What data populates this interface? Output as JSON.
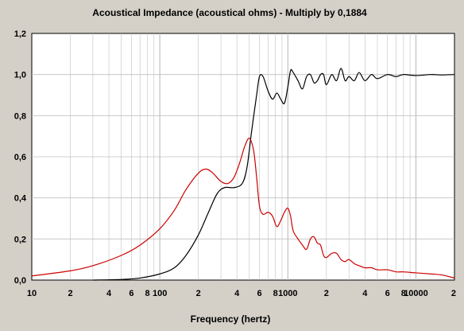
{
  "chart_data": {
    "type": "line",
    "title": "Acoustical Impedance (acoustical ohms) - Multiply by 0,1884",
    "xlabel": "Frequency (hertz)",
    "ylabel": "",
    "xscale": "log",
    "xlim": [
      10,
      20000
    ],
    "ylim": [
      0,
      1.2
    ],
    "grid": true,
    "legend": "none",
    "colors": {
      "background": "#d4d0c8",
      "plot_background": "#ffffff",
      "grid": "#c0c0c0",
      "resistance_curve": "#000000",
      "reactance_curve": "#cc0000"
    },
    "y_ticks": [
      {
        "value": 0.0,
        "label": "0,0"
      },
      {
        "value": 0.2,
        "label": "0,2"
      },
      {
        "value": 0.4,
        "label": "0,4"
      },
      {
        "value": 0.6,
        "label": "0,6"
      },
      {
        "value": 0.8,
        "label": "0,8"
      },
      {
        "value": 1.0,
        "label": "1,0"
      },
      {
        "value": 1.2,
        "label": "1,2"
      }
    ],
    "x_ticks": [
      {
        "value": 10,
        "label": "10"
      },
      {
        "value": 20,
        "label": "2"
      },
      {
        "value": 40,
        "label": "4"
      },
      {
        "value": 60,
        "label": "6"
      },
      {
        "value": 80,
        "label": "8"
      },
      {
        "value": 100,
        "label": "100"
      },
      {
        "value": 200,
        "label": "2"
      },
      {
        "value": 400,
        "label": "4"
      },
      {
        "value": 600,
        "label": "6"
      },
      {
        "value": 800,
        "label": "8"
      },
      {
        "value": 1000,
        "label": "1000"
      },
      {
        "value": 2000,
        "label": "2"
      },
      {
        "value": 4000,
        "label": "4"
      },
      {
        "value": 6000,
        "label": "6"
      },
      {
        "value": 8000,
        "label": "8"
      },
      {
        "value": 10000,
        "label": "10000"
      },
      {
        "value": 20000,
        "label": "2"
      }
    ],
    "series": [
      {
        "color": "#000000",
        "x": [
          30,
          50,
          70,
          100,
          130,
          160,
          200,
          240,
          280,
          320,
          380,
          440,
          480,
          520,
          570,
          600,
          640,
          700,
          760,
          820,
          880,
          940,
          1000,
          1050,
          1100,
          1200,
          1300,
          1400,
          1500,
          1600,
          1700,
          1800,
          1900,
          2000,
          2200,
          2400,
          2600,
          2800,
          3000,
          3300,
          3600,
          4000,
          4500,
          5000,
          6000,
          7000,
          8000,
          10000,
          13000,
          16000,
          20000
        ],
        "y": [
          0.0,
          0.003,
          0.01,
          0.03,
          0.06,
          0.12,
          0.22,
          0.33,
          0.42,
          0.45,
          0.45,
          0.47,
          0.55,
          0.72,
          0.9,
          0.99,
          0.99,
          0.92,
          0.88,
          0.91,
          0.88,
          0.86,
          0.94,
          1.02,
          1.01,
          0.97,
          0.93,
          0.99,
          1.0,
          0.96,
          0.97,
          1.0,
          1.0,
          0.95,
          1.0,
          0.97,
          1.03,
          0.97,
          0.99,
          0.97,
          1.01,
          0.97,
          1.0,
          0.98,
          1.0,
          0.99,
          1.0,
          0.995,
          1.0,
          0.998,
          1.0
        ]
      },
      {
        "color": "#cc0000",
        "x": [
          10,
          20,
          30,
          50,
          70,
          100,
          130,
          160,
          200,
          230,
          260,
          300,
          340,
          380,
          420,
          460,
          500,
          540,
          570,
          600,
          640,
          700,
          760,
          820,
          880,
          940,
          1000,
          1050,
          1100,
          1200,
          1300,
          1400,
          1500,
          1600,
          1700,
          1800,
          1900,
          2000,
          2200,
          2400,
          2600,
          2800,
          3000,
          3300,
          3600,
          4000,
          4500,
          5000,
          6000,
          7000,
          8000,
          10000,
          13000,
          16000,
          20000
        ],
        "y": [
          0.02,
          0.045,
          0.07,
          0.12,
          0.17,
          0.25,
          0.34,
          0.44,
          0.52,
          0.54,
          0.52,
          0.48,
          0.47,
          0.5,
          0.57,
          0.65,
          0.69,
          0.63,
          0.5,
          0.36,
          0.32,
          0.33,
          0.31,
          0.26,
          0.29,
          0.33,
          0.35,
          0.31,
          0.24,
          0.2,
          0.17,
          0.15,
          0.2,
          0.21,
          0.18,
          0.17,
          0.12,
          0.11,
          0.13,
          0.13,
          0.1,
          0.09,
          0.1,
          0.08,
          0.07,
          0.06,
          0.06,
          0.05,
          0.05,
          0.04,
          0.04,
          0.035,
          0.03,
          0.025,
          0.01
        ]
      }
    ]
  }
}
